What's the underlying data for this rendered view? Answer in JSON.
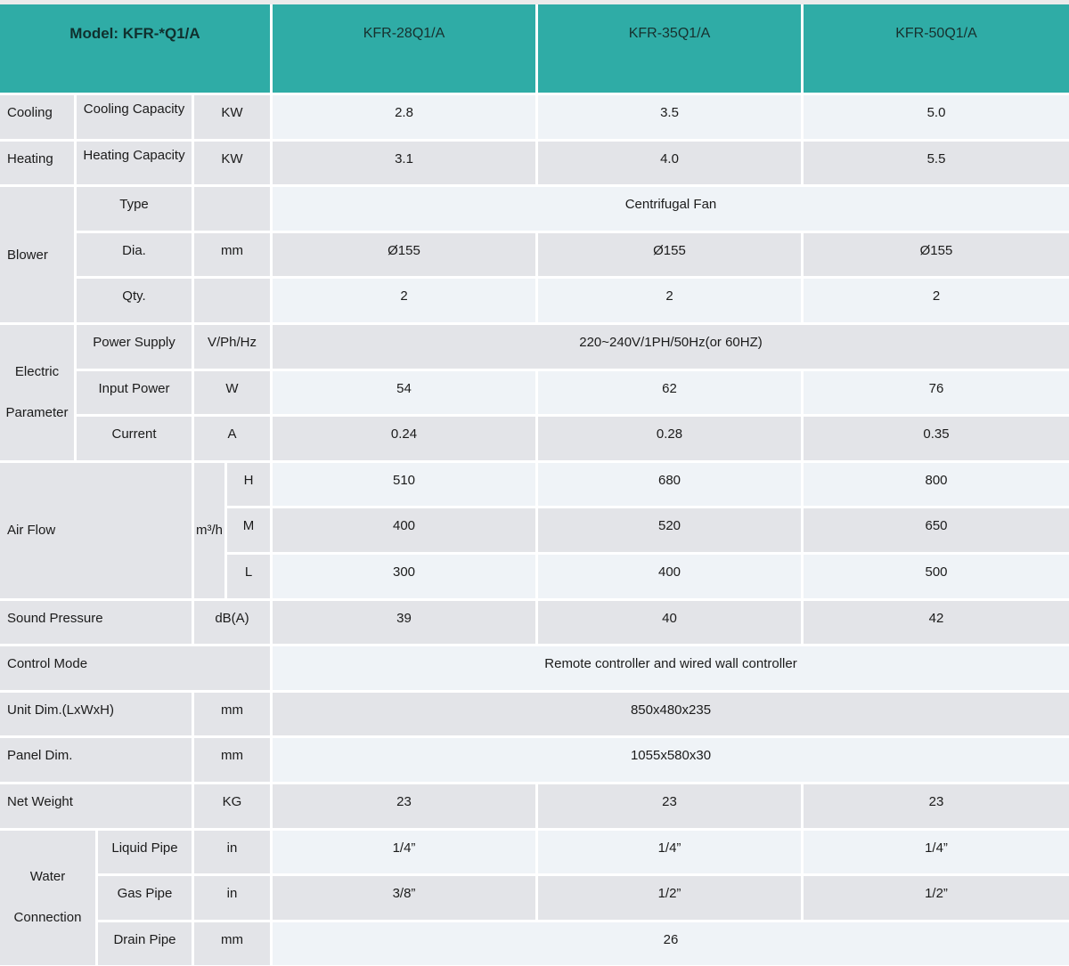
{
  "header": {
    "model_label": "Model: KFR-*Q1/A",
    "columns": [
      "KFR-28Q1/A",
      "KFR-35Q1/A",
      "KFR-50Q1/A"
    ]
  },
  "sections": {
    "cooling": {
      "category": "Cooling",
      "label": "Cooling Capacity",
      "unit": "KW",
      "values": [
        "2.8",
        "3.5",
        "5.0"
      ]
    },
    "heating": {
      "category": "Heating",
      "label": "Heating Capacity",
      "unit": "KW",
      "values": [
        "3.1",
        "4.0",
        "5.5"
      ]
    },
    "blower": {
      "category": "Blower",
      "type": {
        "label": "Type",
        "unit": "",
        "value": "Centrifugal Fan"
      },
      "dia": {
        "label": "Dia.",
        "unit": "mm",
        "values": [
          "Ø155",
          "Ø155",
          "Ø155"
        ]
      },
      "qty": {
        "label": "Qty.",
        "unit": "",
        "values": [
          "2",
          "2",
          "2"
        ]
      }
    },
    "electric": {
      "category": "Electric Parameter",
      "power_supply": {
        "label": "Power Supply",
        "unit": "V/Ph/Hz",
        "value": "220~240V/1PH/50Hz(or 60HZ)"
      },
      "input_power": {
        "label": "Input Power",
        "unit": "W",
        "values": [
          "54",
          "62",
          "76"
        ]
      },
      "current": {
        "label": "Current",
        "unit": "A",
        "values": [
          "0.24",
          "0.28",
          "0.35"
        ]
      }
    },
    "air_flow": {
      "category": "Air Flow",
      "unit": "m³/h",
      "high": {
        "label": "H",
        "values": [
          "510",
          "680",
          "800"
        ]
      },
      "medium": {
        "label": "M",
        "values": [
          "400",
          "520",
          "650"
        ]
      },
      "low": {
        "label": "L",
        "values": [
          "300",
          "400",
          "500"
        ]
      }
    },
    "sound_pressure": {
      "label": "Sound Pressure",
      "unit": "dB(A)",
      "values": [
        "39",
        "40",
        "42"
      ]
    },
    "control_mode": {
      "label": "Control Mode",
      "value": "Remote controller and wired wall controller"
    },
    "unit_dim": {
      "label": "Unit Dim.(LxWxH)",
      "unit": "mm",
      "value": "850x480x235"
    },
    "panel_dim": {
      "label": "Panel Dim.",
      "unit": "mm",
      "value": "1055x580x30"
    },
    "net_weight": {
      "label": "Net Weight",
      "unit": "KG",
      "values": [
        "23",
        "23",
        "23"
      ]
    },
    "water_connection": {
      "category": "Water Connection",
      "liquid": {
        "label": "Liquid Pipe",
        "unit": "in",
        "values": [
          "1/4”",
          "1/4”",
          "1/4”"
        ]
      },
      "gas": {
        "label": "Gas Pipe",
        "unit": "in",
        "values": [
          "3/8”",
          "1/2”",
          "1/2”"
        ]
      },
      "drain": {
        "label": "Drain Pipe",
        "unit": "mm",
        "value": "26"
      }
    }
  },
  "colors": {
    "header_bg": "#2faca6",
    "row_light": "#eff3f7",
    "row_gray": "#e3e4e8",
    "top_strip": "#ebebeb"
  }
}
